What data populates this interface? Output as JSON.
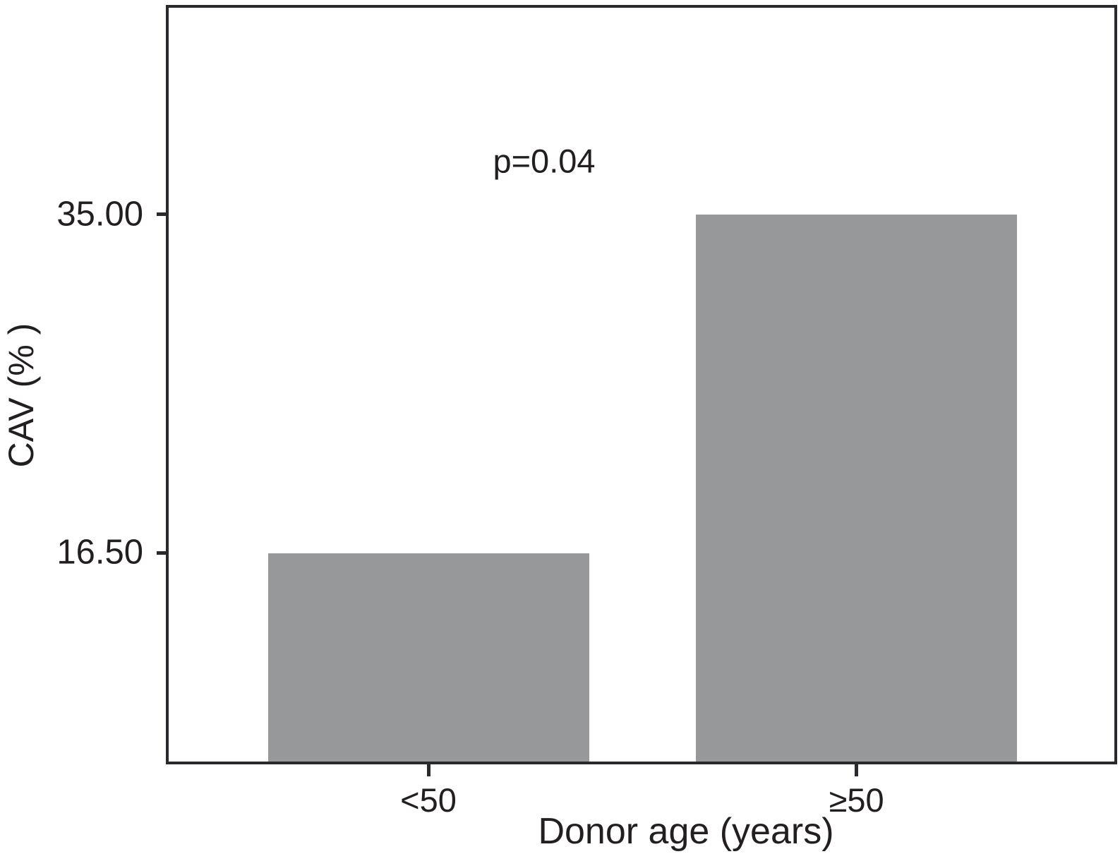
{
  "chart_data": {
    "type": "bar",
    "title": "",
    "xlabel": "Donor age (years)",
    "ylabel": "CAV (% )",
    "categories": [
      "<50",
      "≥50"
    ],
    "values": [
      16.5,
      35.0
    ],
    "value_labels": [
      "16.50",
      "35.00"
    ],
    "yticks": [
      16.5,
      35.0
    ],
    "ytick_labels": [
      "16.50",
      "35.00"
    ],
    "xtick_labels": [
      "<50",
      "≥50"
    ],
    "ylim": [
      5.1,
      46.3
    ],
    "grid": false,
    "legend": null,
    "annotations": [
      {
        "text": "p=0.04"
      }
    ],
    "bar_color": "#97989a",
    "axis_color": "#2a2a2e",
    "text_color": "#231f20",
    "background": "#ffffff"
  }
}
